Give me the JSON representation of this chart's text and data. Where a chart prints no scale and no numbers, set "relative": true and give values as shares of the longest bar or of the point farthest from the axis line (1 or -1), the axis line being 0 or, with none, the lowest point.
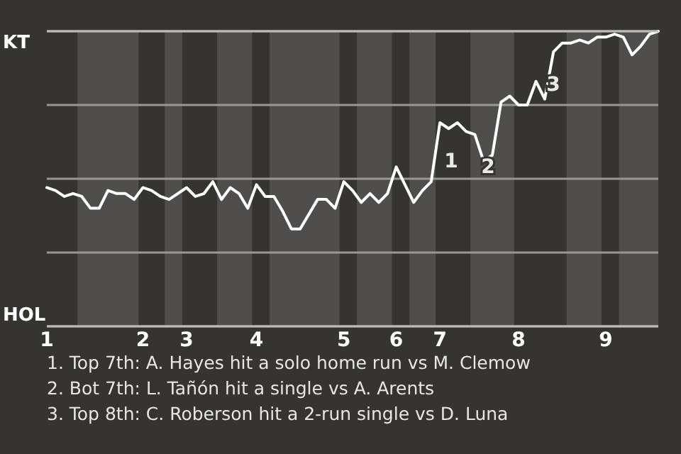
{
  "chart_data": {
    "type": "line",
    "relative": true,
    "categories": [
      "1",
      null,
      null,
      null,
      null,
      null,
      null,
      null,
      null,
      null,
      null,
      "2",
      null,
      null,
      null,
      null,
      "3",
      null,
      null,
      null,
      null,
      null,
      null,
      null,
      "4",
      null,
      null,
      null,
      null,
      null,
      null,
      null,
      null,
      null,
      "5",
      null,
      null,
      null,
      null,
      null,
      "6",
      null,
      null,
      null,
      null,
      "7",
      null,
      null,
      null,
      null,
      null,
      null,
      null,
      null,
      "8",
      null,
      null,
      null,
      null,
      null,
      null,
      null,
      null,
      null,
      "9",
      null,
      null,
      null,
      null,
      null,
      null
    ],
    "series": [
      {
        "color": "#ffffff",
        "values": [
          0.47,
          0.46,
          0.44,
          0.45,
          0.44,
          0.4,
          0.4,
          0.46,
          0.45,
          0.45,
          0.43,
          0.47,
          0.46,
          0.44,
          0.43,
          0.45,
          0.47,
          0.44,
          0.45,
          0.49,
          0.43,
          0.47,
          0.45,
          0.4,
          0.48,
          0.44,
          0.44,
          0.39,
          0.33,
          0.33,
          0.38,
          0.43,
          0.43,
          0.4,
          0.49,
          0.46,
          0.42,
          0.45,
          0.42,
          0.45,
          0.54,
          0.48,
          0.42,
          0.46,
          0.49,
          0.69,
          0.67,
          0.69,
          0.66,
          0.65,
          0.56,
          0.58,
          0.76,
          0.78,
          0.75,
          0.75,
          0.83,
          0.77,
          0.93,
          0.96,
          0.96,
          0.97,
          0.96,
          0.98,
          0.98,
          0.99,
          0.98,
          0.92,
          0.95,
          0.99,
          1
        ]
      }
    ],
    "grid": true,
    "marker": "none",
    "line_style": "solid",
    "annotations": [
      "KT",
      "HOL",
      "1",
      "2",
      "3",
      "1. Top 7th: A. Hayes hit a solo home run vs M. Clemow",
      "2. Bot 7th: L. Tañón hit a single vs A. Arents",
      "3. Top 8th: C. Roberson hit a 2-run single vs D. Luna"
    ]
  }
}
